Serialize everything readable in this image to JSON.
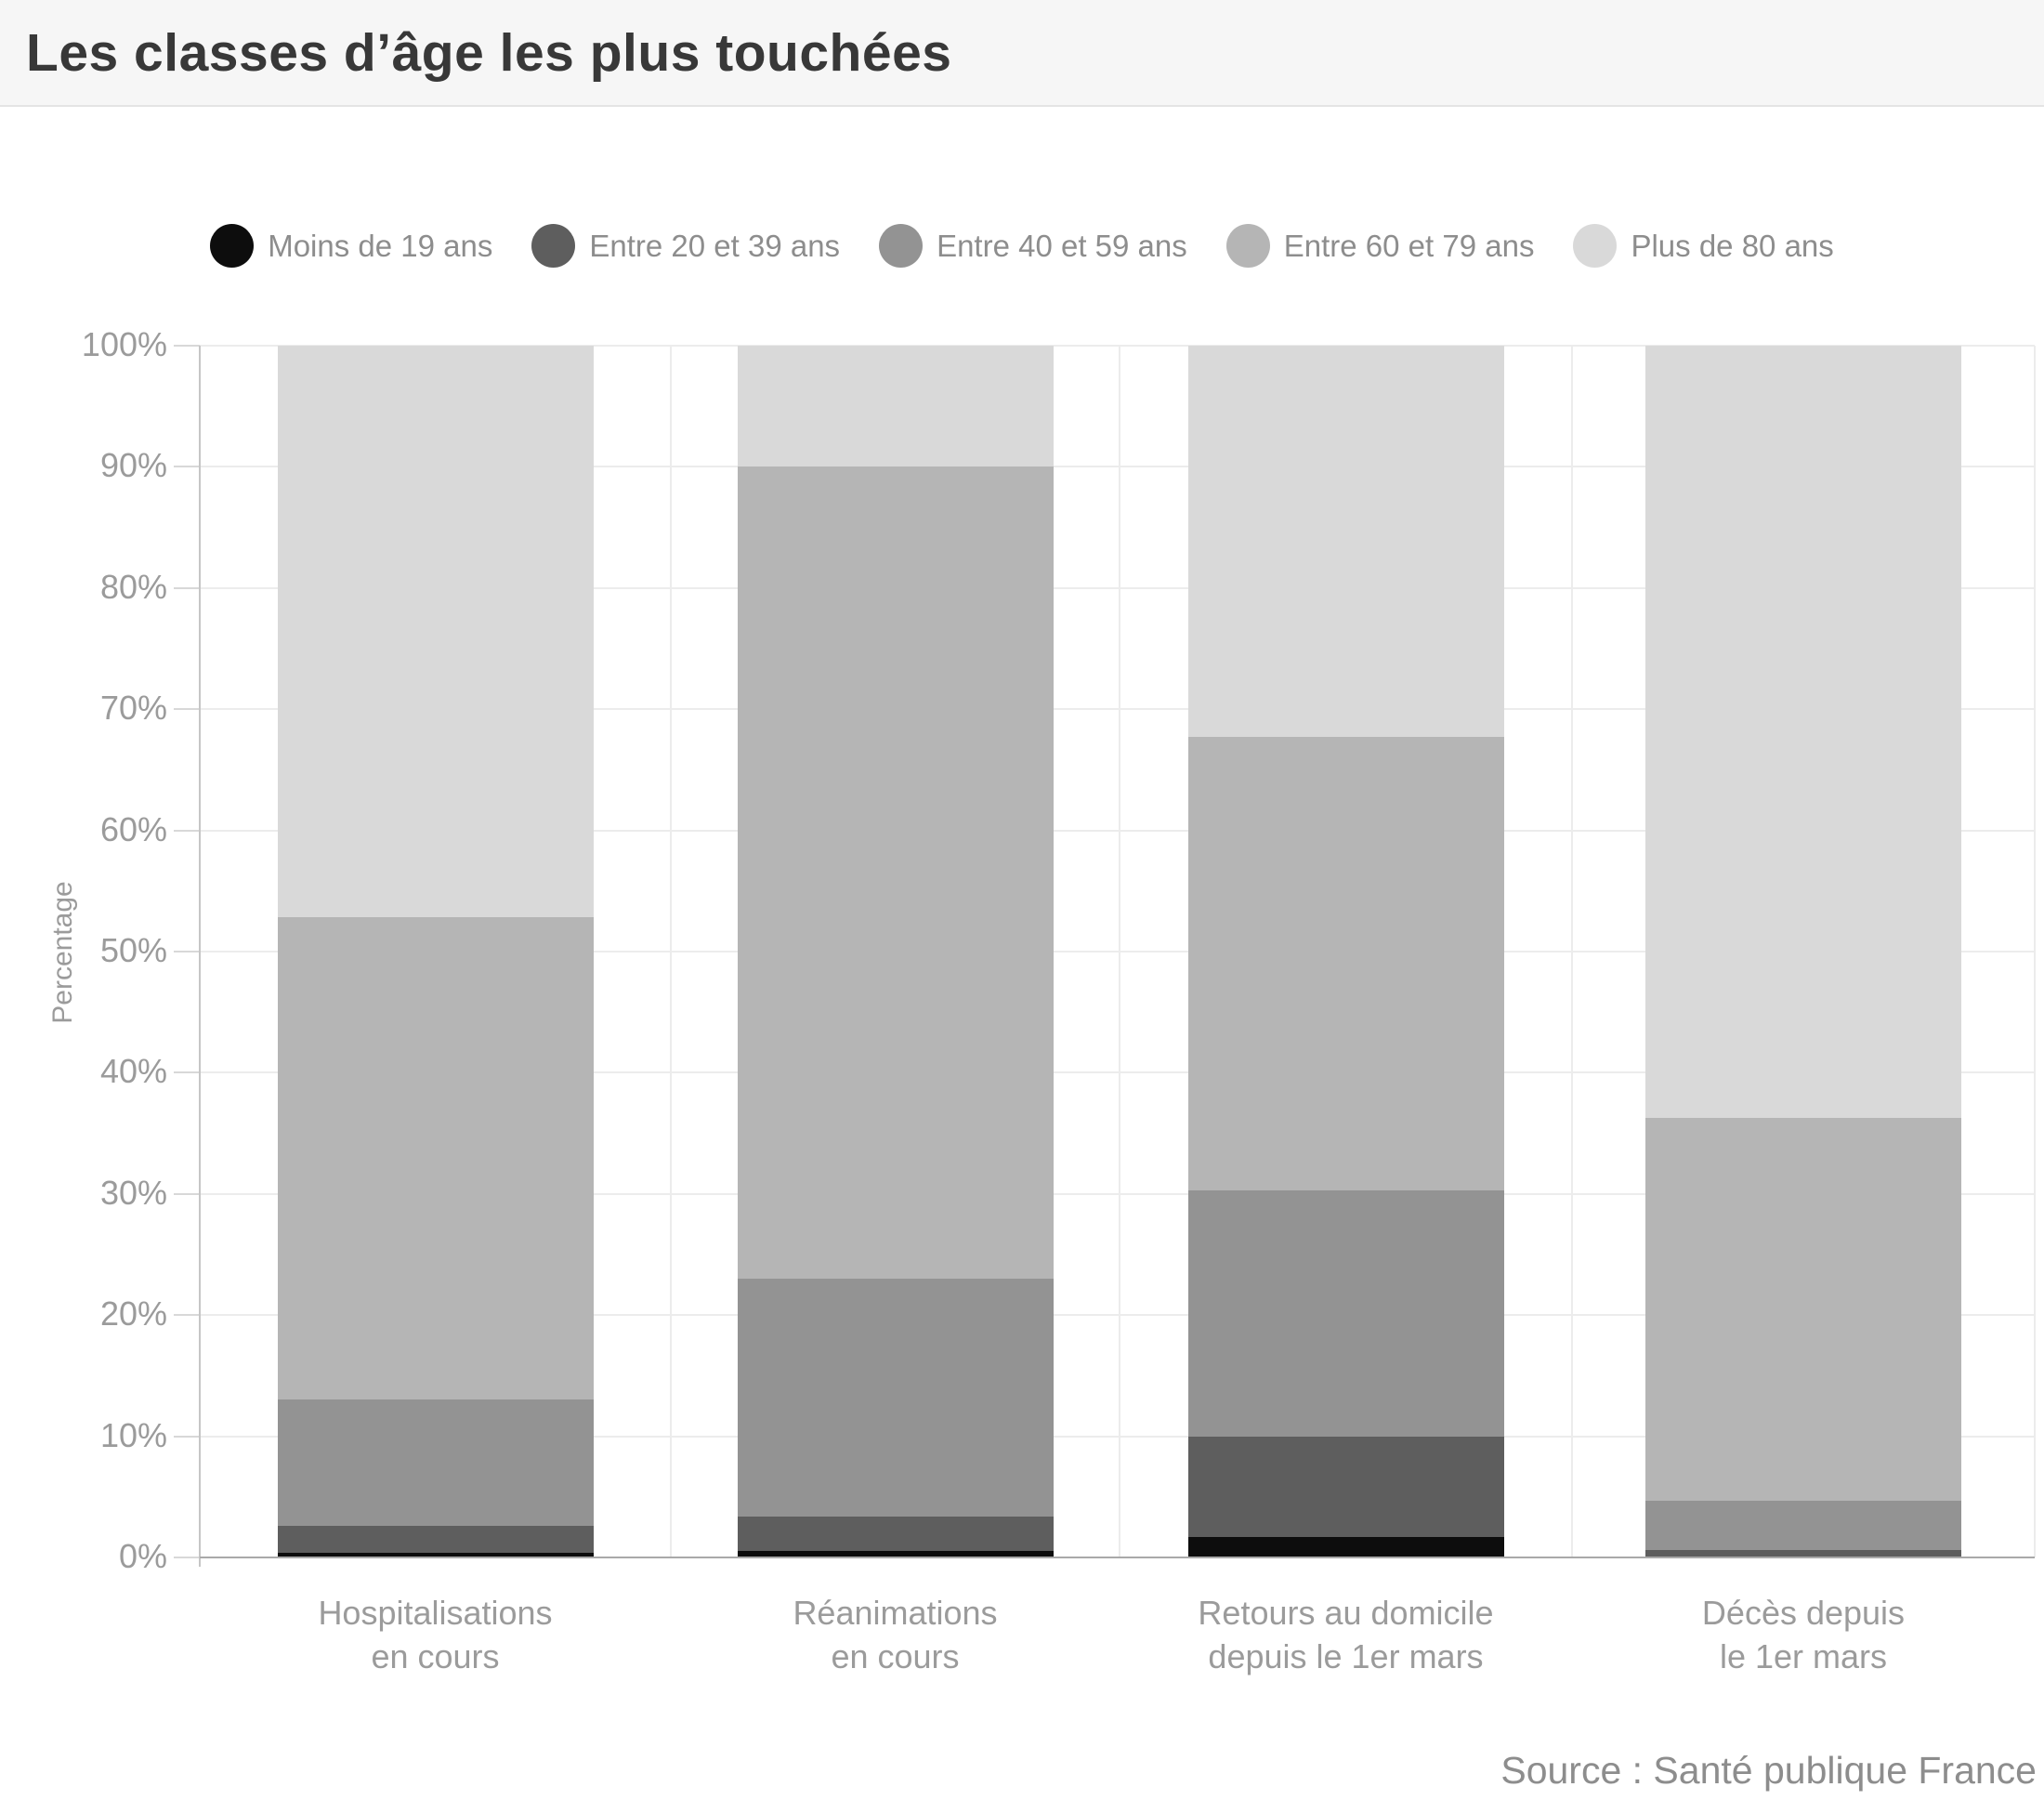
{
  "header": {
    "title": "Les classes d’âge les plus touchées"
  },
  "source": {
    "label": "Source : Santé publique France"
  },
  "chart_data": {
    "type": "bar",
    "stacked": true,
    "orientation": "vertical",
    "title": "Les classes d’âge les plus touchées",
    "xlabel": "",
    "ylabel": "Percentage",
    "unit": "%",
    "ylim": [
      0,
      100
    ],
    "yticks": [
      "0%",
      "10%",
      "20%",
      "30%",
      "40%",
      "50%",
      "60%",
      "70%",
      "80%",
      "90%",
      "100%"
    ],
    "grid": true,
    "legend_position": "top",
    "categories": [
      "Hospitalisations en cours",
      "Réanimations en cours",
      "Retours au domicile depuis le 1er mars",
      "Décès depuis le 1er mars"
    ],
    "category_label_lines": [
      [
        "Hospitalisations",
        "en cours"
      ],
      [
        "Réanimations",
        "en cours"
      ],
      [
        "Retours au domicile",
        "depuis le 1er mars"
      ],
      [
        "Décès depuis",
        "le 1er mars"
      ]
    ],
    "series": [
      {
        "name": "Moins de 19 ans",
        "color": "#0d0d0d",
        "values": [
          0.4,
          0.5,
          1.7,
          0.1
        ]
      },
      {
        "name": "Entre 20 et 39 ans",
        "color": "#5e5e5e",
        "values": [
          2.2,
          2.9,
          8.3,
          0.5
        ]
      },
      {
        "name": "Entre 40 et 59 ans",
        "color": "#939393",
        "values": [
          10.4,
          19.6,
          20.3,
          4.1
        ]
      },
      {
        "name": "Entre 60 et 79 ans",
        "color": "#b5b5b5",
        "values": [
          39.8,
          67.0,
          37.4,
          31.6
        ]
      },
      {
        "name": "Plus de 80 ans",
        "color": "#d9d9d9",
        "values": [
          47.2,
          10.0,
          32.3,
          63.7
        ]
      }
    ]
  }
}
